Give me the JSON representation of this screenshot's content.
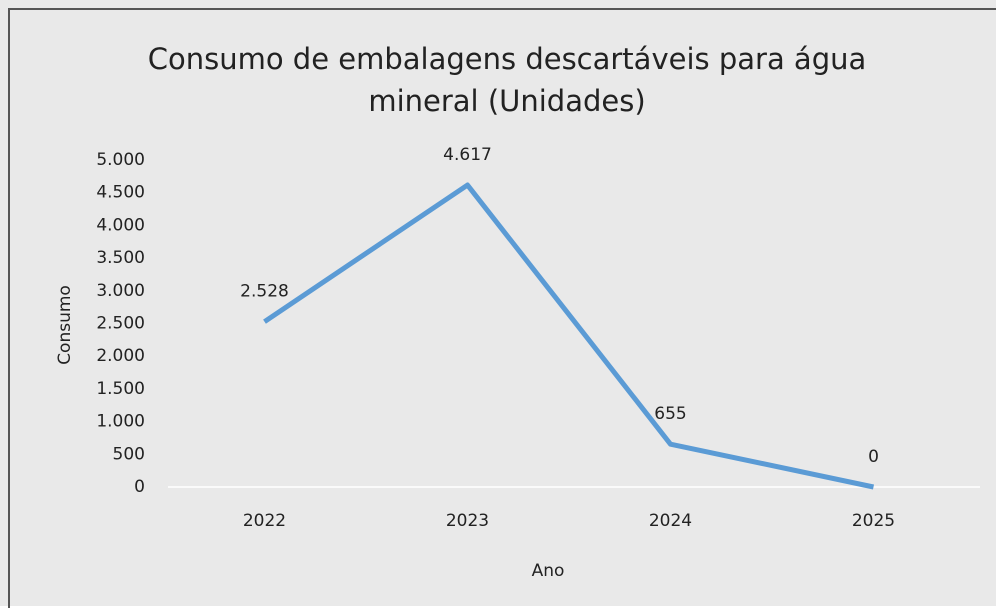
{
  "chart_data": {
    "type": "line",
    "title": "Consumo de embalagens descartáveis para água mineral (Unidades)",
    "x_label": "Ano",
    "y_label": "Consumo",
    "categories": [
      "2022",
      "2023",
      "2024",
      "2025"
    ],
    "series": [
      {
        "name": "Consumo",
        "color": "#5b9bd5",
        "values": [
          2528,
          4617,
          655,
          0
        ],
        "value_labels": [
          "2.528",
          "4.617",
          "655",
          "0"
        ]
      }
    ],
    "ylim": [
      0,
      5000
    ],
    "yticks": [
      0,
      500,
      {
        "value": 1000,
        "label": "1.000"
      },
      {
        "value": 1500,
        "label": "1.500"
      },
      {
        "value": 2000,
        "label": "2.000"
      },
      {
        "value": 2500,
        "label": "2.500"
      },
      {
        "value": 3000,
        "label": "3.000"
      },
      {
        "value": 3500,
        "label": "3.500"
      },
      {
        "value": 4000,
        "label": "4.000"
      },
      {
        "value": 4500,
        "label": "4.500"
      },
      {
        "value": 5000,
        "label": "5.000"
      }
    ],
    "grid": false
  }
}
